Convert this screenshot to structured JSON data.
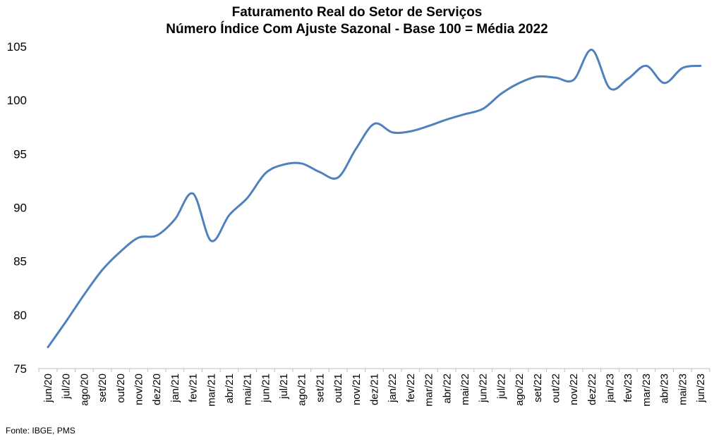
{
  "chart_data": {
    "type": "line",
    "title": "Faturamento Real do Setor de Serviços",
    "subtitle": "Número Índice Com Ajuste Sazonal - Base 100 = Média 2022",
    "xlabel": "",
    "ylabel": "",
    "ylim": [
      75,
      105
    ],
    "yticks": [
      "75",
      "80",
      "85",
      "90",
      "95",
      "100",
      "105"
    ],
    "grid": false,
    "legend": "none",
    "line_color": "#4F81BD",
    "categories": [
      "jun/20",
      "jul/20",
      "ago/20",
      "set/20",
      "out/20",
      "nov/20",
      "dez/20",
      "jan/21",
      "fev/21",
      "mar/21",
      "abr/21",
      "mai/21",
      "jun/21",
      "jul/21",
      "ago/21",
      "set/21",
      "out/21",
      "nov/21",
      "dez/21",
      "jan/22",
      "fev/22",
      "mar/22",
      "abr/22",
      "mai/22",
      "jun/22",
      "jul/22",
      "ago/22",
      "set/22",
      "out/22",
      "nov/22",
      "dez/22",
      "jan/23",
      "fev/23",
      "mar/23",
      "abr/23",
      "mai/23",
      "jun/23"
    ],
    "series": [
      {
        "values": [
          77.0,
          79.4,
          81.9,
          84.2,
          85.9,
          87.2,
          87.4,
          88.9,
          91.3,
          86.9,
          89.3,
          90.9,
          93.2,
          94.0,
          94.1,
          93.3,
          92.8,
          95.5,
          97.8,
          97.0,
          97.1,
          97.6,
          98.2,
          98.7,
          99.2,
          100.6,
          101.6,
          102.2,
          102.1,
          101.9,
          104.7,
          101.1,
          102.0,
          103.2,
          101.6,
          103.0,
          103.2
        ]
      }
    ]
  },
  "source": "Fonte: IBGE, PMS"
}
